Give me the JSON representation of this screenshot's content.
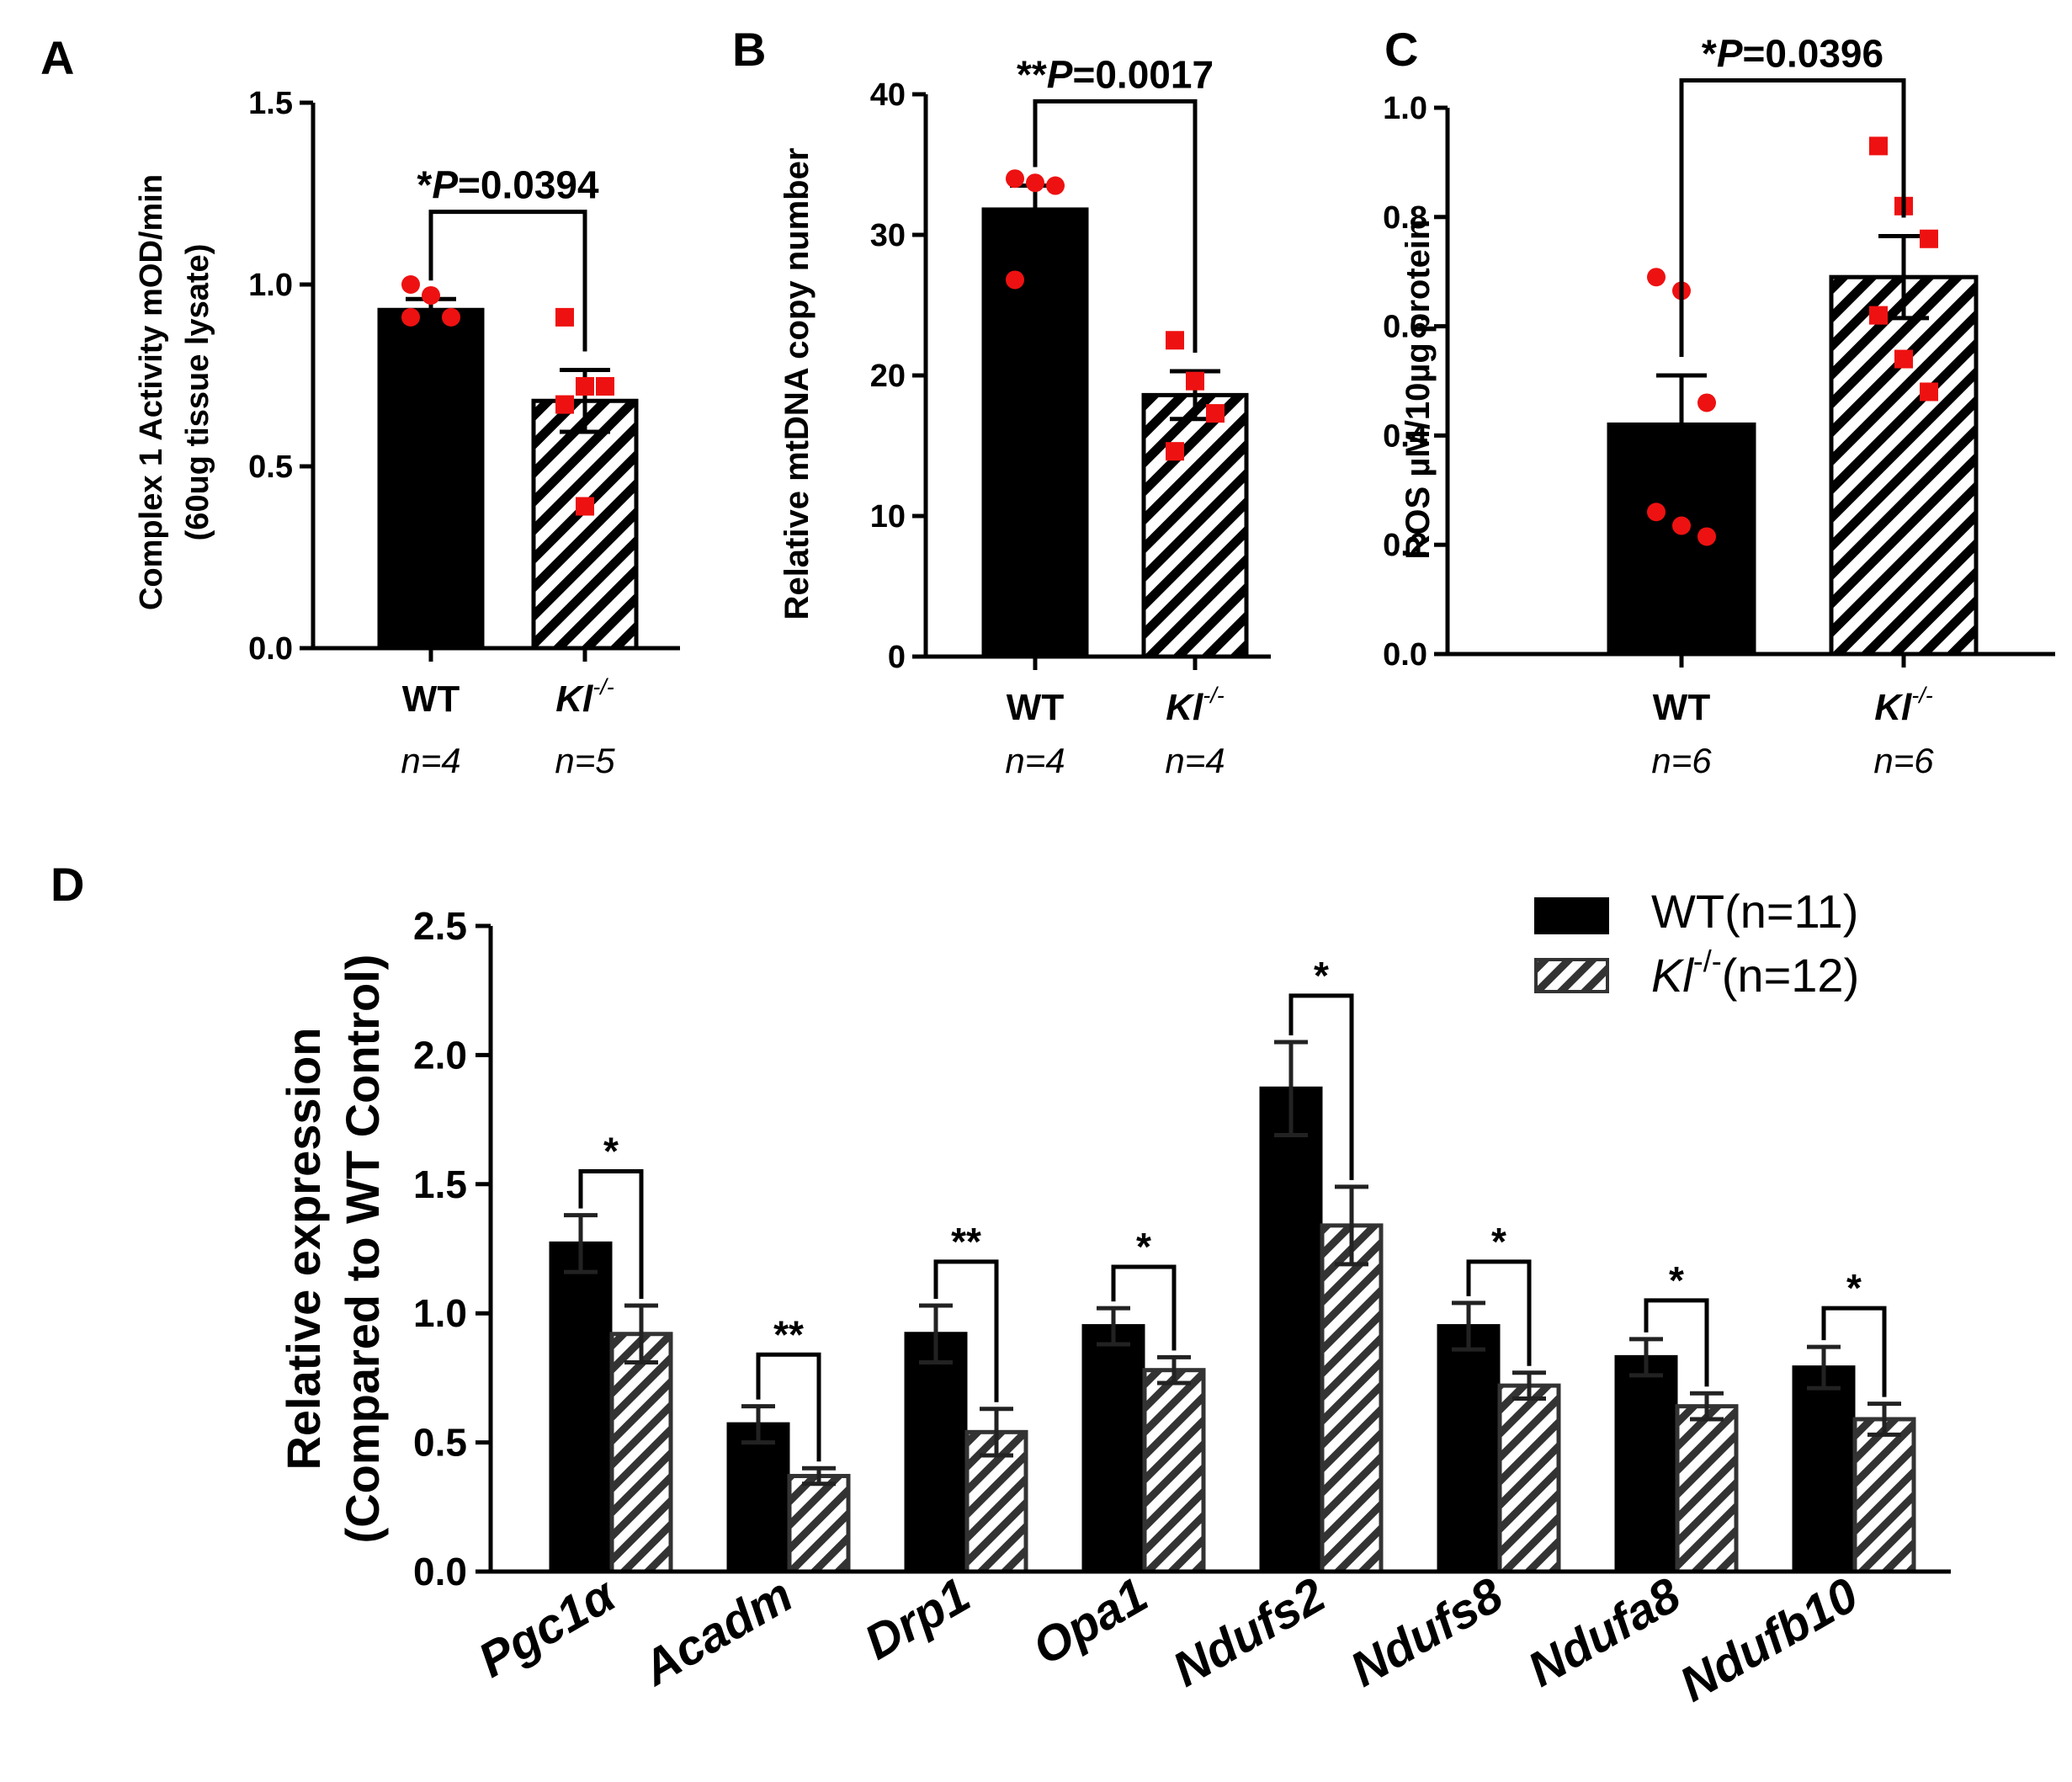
{
  "colors": {
    "wt_bar": "#000000",
    "ki_hatch": "#000000",
    "ki_hatch_gray": "#333333",
    "point": "#ee1111",
    "axis": "#000000"
  },
  "chart_data": [
    {
      "panel": "A",
      "type": "bar",
      "ylabel_line1": "Complex 1 Activity mOD/min",
      "ylabel_line2": "(60ug tissue lysate)",
      "ylim": [
        0,
        1.5
      ],
      "yticks": [
        0,
        0.5,
        1.0,
        1.5
      ],
      "ytick_labels": [
        "0.0",
        "0.5",
        "1.0",
        "1.5"
      ],
      "groups": [
        {
          "name": "WT",
          "n_label": "n=4",
          "value": 0.93,
          "sem": 0.03,
          "points": [
            1.0,
            0.97,
            0.91,
            0.91
          ]
        },
        {
          "name": "Kl",
          "sup": "-/-",
          "n_label": "n=5",
          "value": 0.68,
          "sem": 0.085,
          "points": [
            0.91,
            0.72,
            0.72,
            0.67,
            0.39
          ]
        }
      ],
      "significance": {
        "stars": "*",
        "p_text": "P=0.0394",
        "y": 1.2
      }
    },
    {
      "panel": "B",
      "type": "bar",
      "ylabel_line1": "Relative mtDNA copy number",
      "ylabel_line2": "",
      "ylim": [
        0,
        40
      ],
      "yticks": [
        0,
        10,
        20,
        30,
        40
      ],
      "ytick_labels": [
        "0",
        "10",
        "20",
        "30",
        "40"
      ],
      "groups": [
        {
          "name": "WT",
          "n_label": "n=4",
          "value": 31.8,
          "sem": 1.7,
          "points": [
            34.0,
            33.7,
            33.5,
            26.8
          ]
        },
        {
          "name": "Kl",
          "sup": "-/-",
          "n_label": "n=4",
          "value": 18.6,
          "sem": 1.7,
          "points": [
            22.5,
            19.6,
            17.3,
            14.6
          ]
        }
      ],
      "significance": {
        "stars": "**",
        "p_text": "P=0.0017",
        "y": 39.5
      }
    },
    {
      "panel": "C",
      "type": "bar",
      "ylabel_line1": "ROS µM/10µg protein",
      "ylabel_line2": "",
      "ylim": [
        0,
        1.0
      ],
      "yticks": [
        0,
        0.2,
        0.4,
        0.6,
        0.8,
        1.0
      ],
      "ytick_labels": [
        "0.0",
        "0.2",
        "0.4",
        "0.6",
        "0.8",
        "1.0"
      ],
      "groups": [
        {
          "name": "WT",
          "n_label": "n=6",
          "value": 0.42,
          "sem": 0.09,
          "points": [
            0.69,
            0.665,
            0.46,
            0.26,
            0.235,
            0.215
          ]
        },
        {
          "name": "Kl",
          "sup": "-/-",
          "n_label": "n=6",
          "value": 0.69,
          "sem": 0.075,
          "points": [
            0.93,
            0.82,
            0.76,
            0.62,
            0.54,
            0.48
          ]
        }
      ],
      "significance": {
        "stars": "*",
        "p_text": "P=0.0396",
        "y": 1.05
      }
    },
    {
      "panel": "D",
      "type": "bar",
      "ylabel_line1": "Relative expression",
      "ylabel_line2": "(Compared to WT Control)",
      "ylim": [
        0,
        2.5
      ],
      "yticks": [
        0,
        0.5,
        1.0,
        1.5,
        2.0,
        2.5
      ],
      "ytick_labels": [
        "0.0",
        "0.5",
        "1.0",
        "1.5",
        "2.0",
        "2.5"
      ],
      "categories": [
        "Pgc1α",
        "Acadm",
        "Drp1",
        "Opa1",
        "Ndufs2",
        "Ndufs8",
        "Ndufa8",
        "Ndufb10"
      ],
      "series": [
        {
          "name": "WT(n=11)",
          "values": [
            1.27,
            0.57,
            0.92,
            0.95,
            1.87,
            0.95,
            0.83,
            0.79
          ],
          "sem": [
            0.11,
            0.07,
            0.11,
            0.07,
            0.18,
            0.09,
            0.07,
            0.08
          ]
        },
        {
          "name": "Kl-/-(n=12)",
          "legend_main": "Kl",
          "legend_sup": "-/-",
          "legend_rest": "(n=12)",
          "values": [
            0.92,
            0.37,
            0.54,
            0.78,
            1.34,
            0.72,
            0.64,
            0.59
          ],
          "sem": [
            0.11,
            0.03,
            0.09,
            0.05,
            0.15,
            0.05,
            0.05,
            0.06
          ]
        }
      ],
      "significance": [
        {
          "stars": "*",
          "y": 1.55
        },
        {
          "stars": "**",
          "y": 0.84
        },
        {
          "stars": "**",
          "y": 1.2
        },
        {
          "stars": "*",
          "y": 1.18
        },
        {
          "stars": "*",
          "y": 2.23
        },
        {
          "stars": "*",
          "y": 1.2
        },
        {
          "stars": "*",
          "y": 1.05
        },
        {
          "stars": "*",
          "y": 1.02
        }
      ]
    }
  ]
}
